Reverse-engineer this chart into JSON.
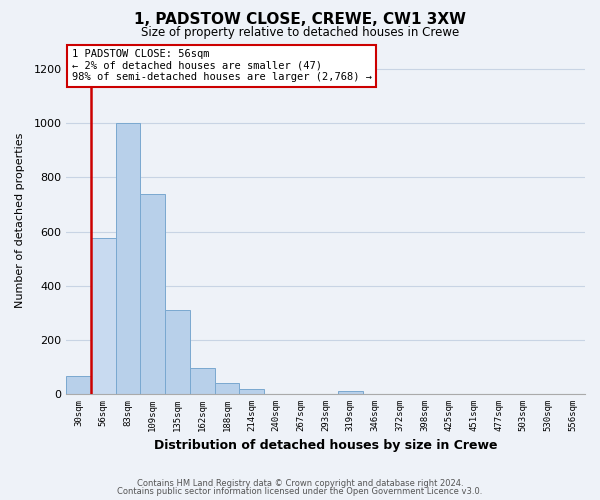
{
  "title": "1, PADSTOW CLOSE, CREWE, CW1 3XW",
  "subtitle": "Size of property relative to detached houses in Crewe",
  "xlabel": "Distribution of detached houses by size in Crewe",
  "ylabel": "Number of detached properties",
  "bar_labels": [
    "30sqm",
    "56sqm",
    "83sqm",
    "109sqm",
    "135sqm",
    "162sqm",
    "188sqm",
    "214sqm",
    "240sqm",
    "267sqm",
    "293sqm",
    "319sqm",
    "346sqm",
    "372sqm",
    "398sqm",
    "425sqm",
    "451sqm",
    "477sqm",
    "503sqm",
    "530sqm",
    "556sqm"
  ],
  "bar_values": [
    65,
    575,
    1000,
    740,
    310,
    95,
    40,
    20,
    0,
    0,
    0,
    10,
    0,
    0,
    0,
    0,
    0,
    0,
    0,
    0,
    0
  ],
  "highlight_index": 1,
  "bar_color": "#b8d0ea",
  "highlight_bar_color": "#c8daf0",
  "ylim": [
    0,
    1280
  ],
  "yticks": [
    0,
    200,
    400,
    600,
    800,
    1000,
    1200
  ],
  "annotation_line1": "1 PADSTOW CLOSE: 56sqm",
  "annotation_line2": "← 2% of detached houses are smaller (47)",
  "annotation_line3": "98% of semi-detached houses are larger (2,768) →",
  "footer_line1": "Contains HM Land Registry data © Crown copyright and database right 2024.",
  "footer_line2": "Contains public sector information licensed under the Open Government Licence v3.0.",
  "background_color": "#eef2f8",
  "grid_color": "#c8d4e4",
  "box_edge_color": "#cc0000",
  "bar_edge_color": "#7aa8d0"
}
